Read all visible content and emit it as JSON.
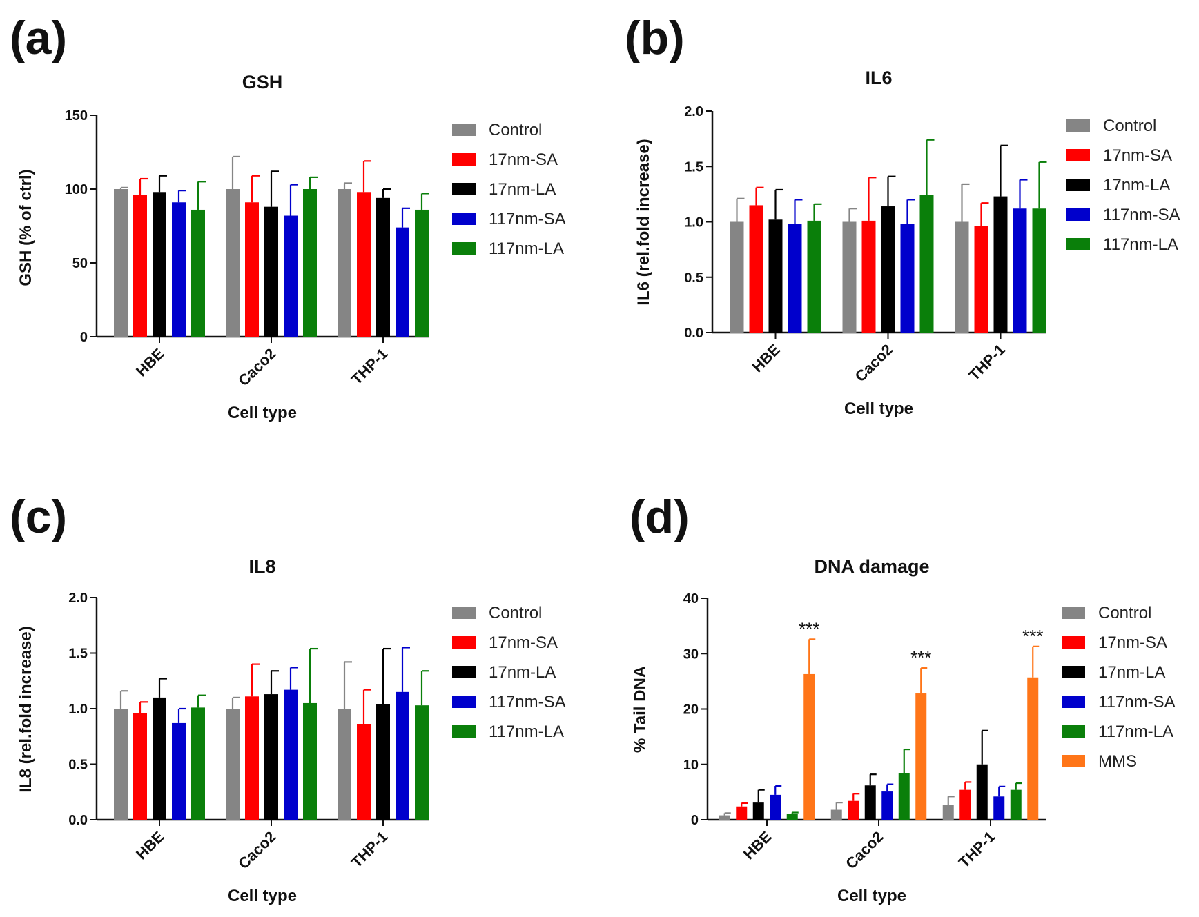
{
  "chart_data": [
    {
      "panel": "(a)",
      "type": "bar",
      "title": "GSH",
      "xlabel": "Cell type",
      "ylabel": "GSH (% of ctrl)",
      "ylim": [
        0,
        150
      ],
      "yticks": [
        0,
        50,
        100,
        150
      ],
      "ytick_labels": [
        "0",
        "50",
        "100",
        "150"
      ],
      "categories": [
        "HBE",
        "Caco2",
        "THP-1"
      ],
      "legend_position": "right",
      "series": [
        {
          "name": "Control",
          "color": "#858585",
          "values": [
            100,
            100,
            100
          ],
          "errors": [
            1,
            22,
            4
          ]
        },
        {
          "name": "17nm-SA",
          "color": "#ff0000",
          "values": [
            96,
            91,
            98
          ],
          "errors": [
            11,
            18,
            21
          ]
        },
        {
          "name": "17nm-LA",
          "color": "#000000",
          "values": [
            98,
            88,
            94
          ],
          "errors": [
            11,
            24,
            6
          ]
        },
        {
          "name": "117nm-SA",
          "color": "#0000cc",
          "values": [
            91,
            82,
            74
          ],
          "errors": [
            8,
            21,
            13
          ]
        },
        {
          "name": "117nm-LA",
          "color": "#0a7f0a",
          "values": [
            86,
            100,
            86
          ],
          "errors": [
            19,
            8,
            11
          ]
        }
      ],
      "annotations": []
    },
    {
      "panel": "(b)",
      "type": "bar",
      "title": "IL6",
      "xlabel": "Cell type",
      "ylabel": "IL6 (rel.fold increase)",
      "ylim": [
        0,
        2
      ],
      "yticks": [
        0,
        0.5,
        1,
        1.5,
        2
      ],
      "ytick_labels": [
        "0.0",
        "0.5",
        "1.0",
        "1.5",
        "2.0"
      ],
      "categories": [
        "HBE",
        "Caco2",
        "THP-1"
      ],
      "legend_position": "right",
      "series": [
        {
          "name": "Control",
          "color": "#858585",
          "values": [
            1.0,
            1.0,
            1.0
          ],
          "errors": [
            0.21,
            0.12,
            0.34
          ]
        },
        {
          "name": "17nm-SA",
          "color": "#ff0000",
          "values": [
            1.15,
            1.01,
            0.96
          ],
          "errors": [
            0.16,
            0.39,
            0.21
          ]
        },
        {
          "name": "17nm-LA",
          "color": "#000000",
          "values": [
            1.02,
            1.14,
            1.23
          ],
          "errors": [
            0.27,
            0.27,
            0.46
          ]
        },
        {
          "name": "117nm-SA",
          "color": "#0000cc",
          "values": [
            0.98,
            0.98,
            1.12
          ],
          "errors": [
            0.22,
            0.22,
            0.26
          ]
        },
        {
          "name": "117nm-LA",
          "color": "#0a7f0a",
          "values": [
            1.01,
            1.24,
            1.12
          ],
          "errors": [
            0.15,
            0.5,
            0.42
          ]
        }
      ],
      "annotations": []
    },
    {
      "panel": "(c)",
      "type": "bar",
      "title": "IL8",
      "xlabel": "Cell type",
      "ylabel": "IL8 (rel.fold increase)",
      "ylim": [
        0,
        2
      ],
      "yticks": [
        0,
        0.5,
        1,
        1.5,
        2
      ],
      "ytick_labels": [
        "0.0",
        "0.5",
        "1.0",
        "1.5",
        "2.0"
      ],
      "categories": [
        "HBE",
        "Caco2",
        "THP-1"
      ],
      "legend_position": "right",
      "series": [
        {
          "name": "Control",
          "color": "#858585",
          "values": [
            1.0,
            1.0,
            1.0
          ],
          "errors": [
            0.16,
            0.1,
            0.42
          ]
        },
        {
          "name": "17nm-SA",
          "color": "#ff0000",
          "values": [
            0.96,
            1.11,
            0.86
          ],
          "errors": [
            0.1,
            0.29,
            0.31
          ]
        },
        {
          "name": "17nm-LA",
          "color": "#000000",
          "values": [
            1.1,
            1.13,
            1.04
          ],
          "errors": [
            0.17,
            0.21,
            0.5
          ]
        },
        {
          "name": "117nm-SA",
          "color": "#0000cc",
          "values": [
            0.87,
            1.17,
            1.15
          ],
          "errors": [
            0.13,
            0.2,
            0.4
          ]
        },
        {
          "name": "117nm-LA",
          "color": "#0a7f0a",
          "values": [
            1.01,
            1.05,
            1.03
          ],
          "errors": [
            0.11,
            0.49,
            0.31
          ]
        }
      ],
      "annotations": []
    },
    {
      "panel": "(d)",
      "type": "bar",
      "title": "DNA damage",
      "xlabel": "Cell type",
      "ylabel": "% Tail DNA",
      "ylim": [
        0,
        40
      ],
      "yticks": [
        0,
        10,
        20,
        30,
        40
      ],
      "ytick_labels": [
        "0",
        "10",
        "20",
        "30",
        "40"
      ],
      "categories": [
        "HBE",
        "Caco2",
        "THP-1"
      ],
      "legend_position": "right",
      "series": [
        {
          "name": "Control",
          "color": "#858585",
          "values": [
            0.8,
            1.8,
            2.7
          ],
          "errors": [
            0.4,
            1.3,
            1.5
          ]
        },
        {
          "name": "17nm-SA",
          "color": "#ff0000",
          "values": [
            2.4,
            3.4,
            5.4
          ],
          "errors": [
            0.6,
            1.3,
            1.4
          ]
        },
        {
          "name": "17nm-LA",
          "color": "#000000",
          "values": [
            3.1,
            6.2,
            10.0
          ],
          "errors": [
            2.3,
            2.0,
            6.1
          ]
        },
        {
          "name": "117nm-SA",
          "color": "#0000cc",
          "values": [
            4.5,
            5.1,
            4.2
          ],
          "errors": [
            1.6,
            1.3,
            1.8
          ]
        },
        {
          "name": "117nm-LA",
          "color": "#0a7f0a",
          "values": [
            1.0,
            8.4,
            5.4
          ],
          "errors": [
            0.3,
            4.3,
            1.2
          ]
        },
        {
          "name": "MMS",
          "color": "#ff7518",
          "values": [
            26.3,
            22.8,
            25.7
          ],
          "errors": [
            6.3,
            4.6,
            5.6
          ]
        }
      ],
      "annotations": [
        {
          "text": "***",
          "category": "HBE",
          "series": "MMS"
        },
        {
          "text": "***",
          "category": "Caco2",
          "series": "MMS"
        },
        {
          "text": "***",
          "category": "THP-1",
          "series": "MMS"
        }
      ]
    }
  ]
}
